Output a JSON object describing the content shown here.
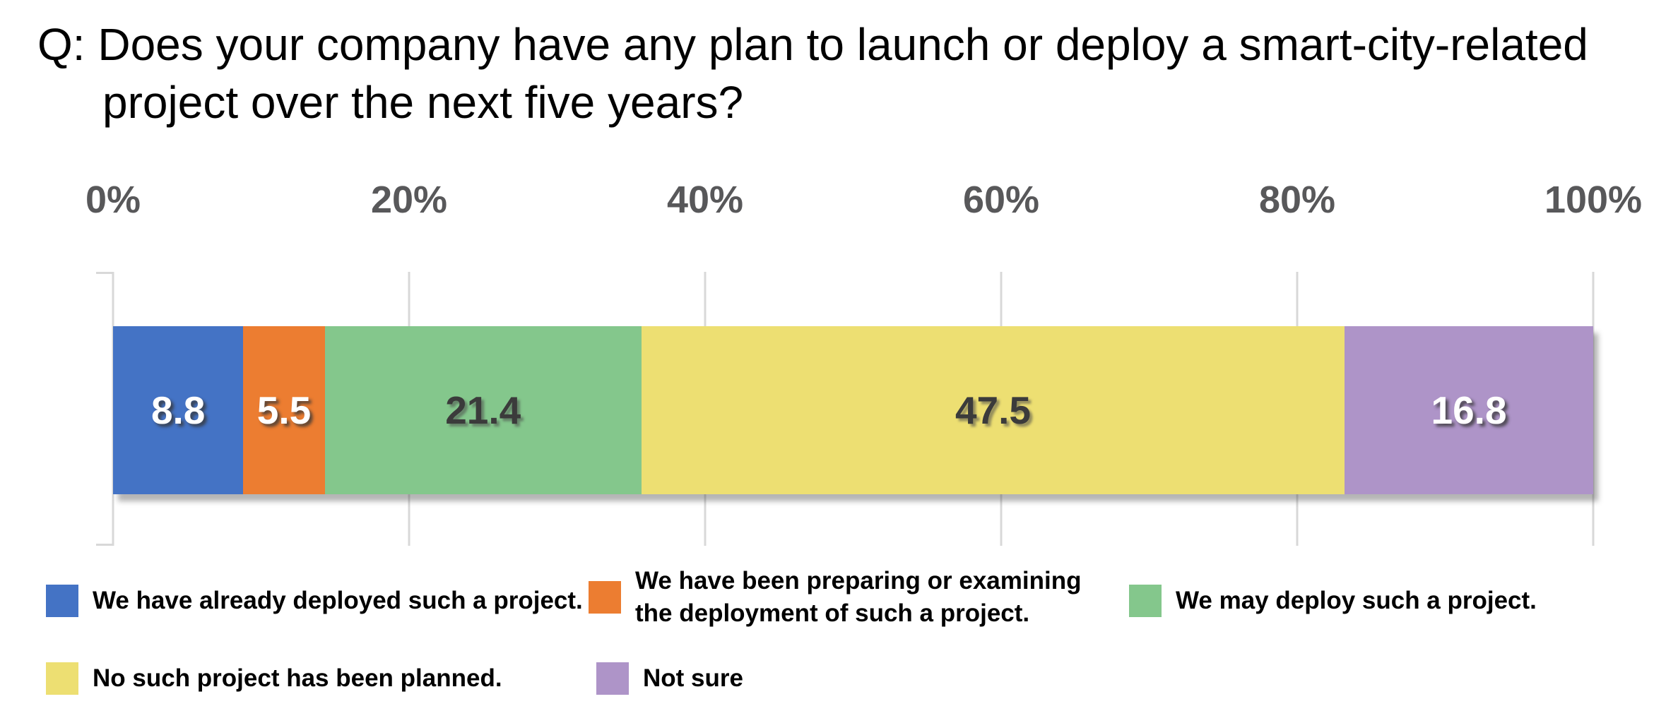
{
  "title": {
    "lines": [
      "Q: Does your company have any plan to launch or deploy a smart-city-related",
      "project over the next five years?"
    ],
    "full": "Q: Does your company have any plan to launch or deploy a smart-city-related project over the next five years?"
  },
  "chart_data": {
    "type": "bar",
    "subtype": "stacked-horizontal-single-bar",
    "title": "Q: Does your company have any plan to launch or deploy a smart-city-related project over the next five years?",
    "unit": "%",
    "xlabel": "",
    "ylabel": "",
    "xlim": [
      0,
      100
    ],
    "x_ticks": [
      "0%",
      "20%",
      "40%",
      "60%",
      "80%",
      "100%"
    ],
    "grid": true,
    "legend_position": "bottom",
    "series": [
      {
        "name": "We have already deployed such a project.",
        "value": 8.8,
        "label": "8.8",
        "color": "#4473C5",
        "label_style": "light"
      },
      {
        "name": "We have been preparing or examining the deployment of such a project.",
        "value": 5.5,
        "label": "5.5",
        "color": "#EC7D31",
        "label_style": "light"
      },
      {
        "name": "We may deploy such a project.",
        "value": 21.4,
        "label": "21.4",
        "color": "#84C78C",
        "label_style": "dark"
      },
      {
        "name": "No such project has been planned.",
        "value": 47.5,
        "label": "47.5",
        "color": "#EDDF72",
        "label_style": "dark"
      },
      {
        "name": "Not sure",
        "value": 16.8,
        "label": "16.8",
        "color": "#AE94C8",
        "label_style": "light"
      }
    ],
    "colors": {
      "grid": "#D8D8D8",
      "tick_text": "#58585A",
      "title_text": "#000000",
      "legend_text": "#000000"
    }
  }
}
